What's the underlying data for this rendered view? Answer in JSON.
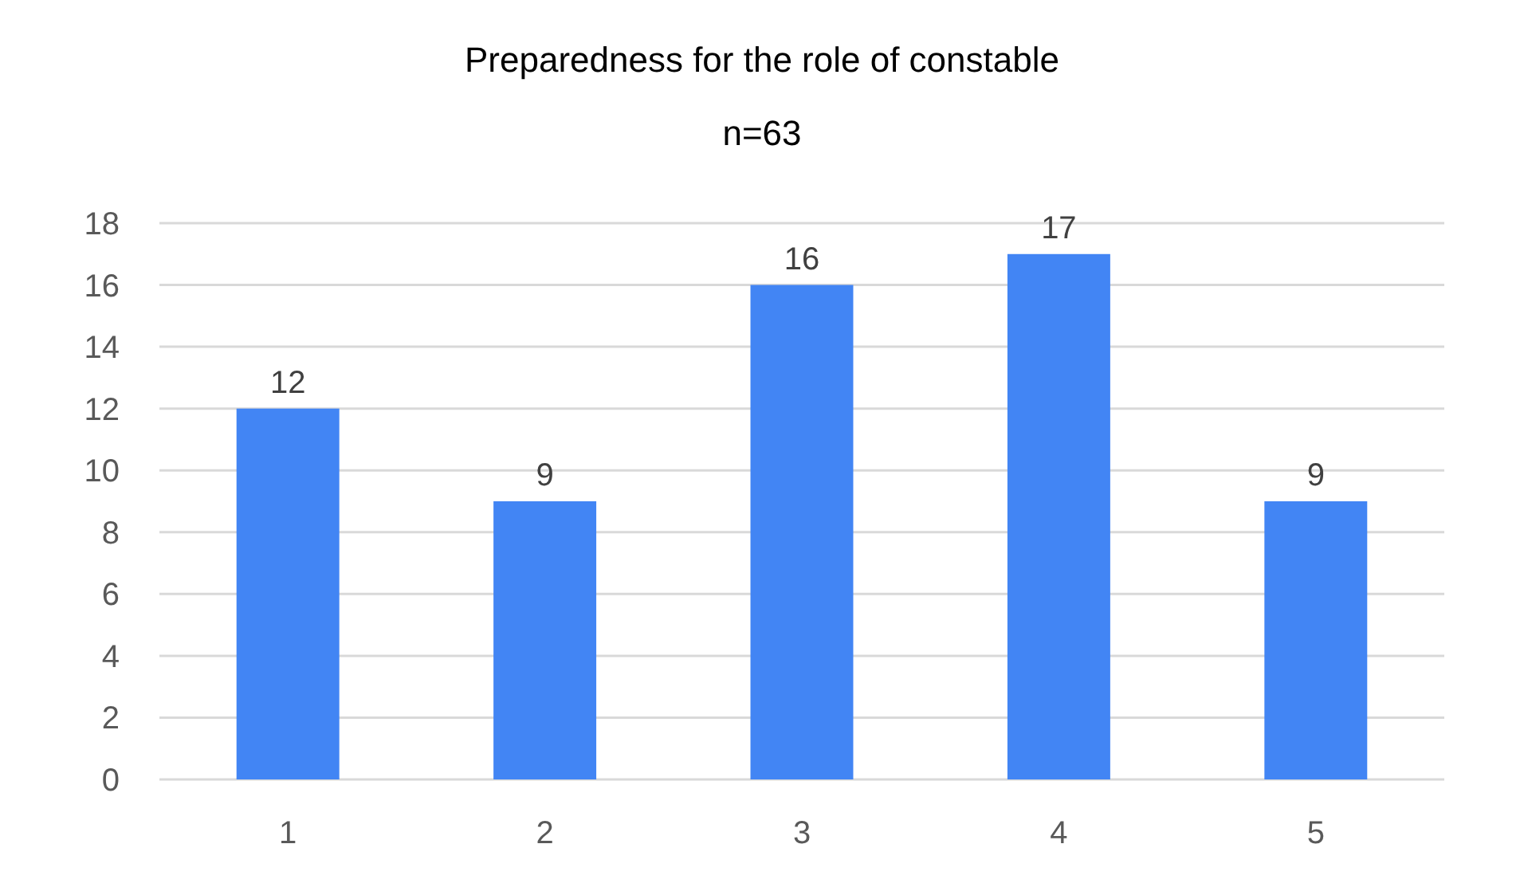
{
  "chart_data": {
    "type": "bar",
    "title": "Preparedness for the role of constable",
    "subtitle": "n=63",
    "categories": [
      "1",
      "2",
      "3",
      "4",
      "5"
    ],
    "values": [
      12,
      9,
      16,
      17,
      9
    ],
    "color": "#4285f4",
    "ylim": [
      0,
      18
    ],
    "yticks": [
      0,
      2,
      4,
      6,
      8,
      10,
      12,
      14,
      16,
      18
    ],
    "grid": "y",
    "data_labels": true
  }
}
